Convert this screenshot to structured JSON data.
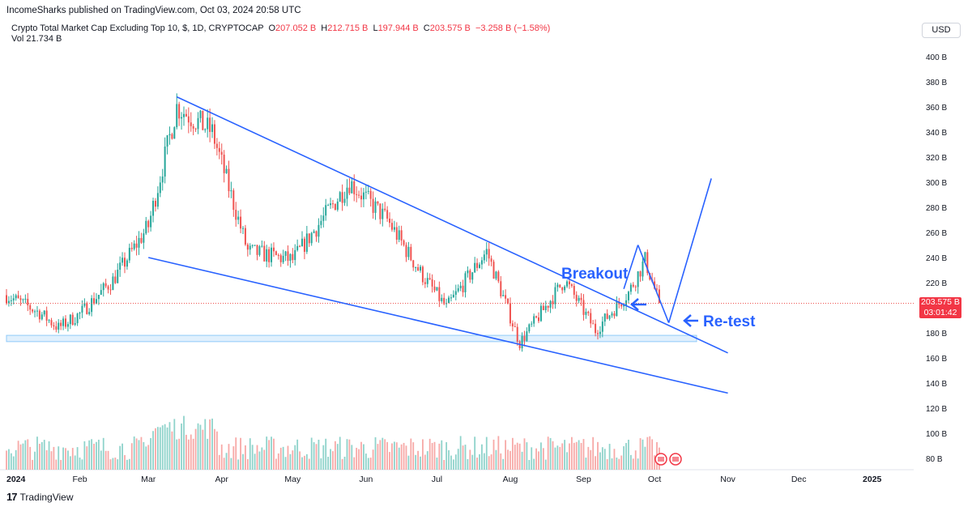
{
  "publisher": "IncomeSharks published on TradingView.com, Oct 03, 2024 20:58 UTC",
  "legend": {
    "symbol": "Crypto Total Market Cap Excluding Top 10, $, 1D, CRYPTOCAP",
    "o_label": "O",
    "o_value": "207.052 B",
    "h_label": "H",
    "h_value": "212.715 B",
    "l_label": "L",
    "l_value": "197.944 B",
    "c_label": "C",
    "c_value": "203.575 B",
    "change": "−3.258 B (−1.58%)",
    "vol_label": "Vol",
    "vol_value": "21.734 B"
  },
  "currency": "USD",
  "price_tag": {
    "price": "203.575 B",
    "countdown": "03:01:42"
  },
  "annotations": {
    "breakout": "Breakout",
    "retest": "Re-test"
  },
  "footer": {
    "brand": "TradingView",
    "logo": "17"
  },
  "colors": {
    "up": "#26a69a",
    "down": "#ef5350",
    "line": "#2962ff",
    "zone": "#bbdefb"
  },
  "chart_data": {
    "type": "candlestick",
    "y_axis_ticks": [
      "400 B",
      "380 B",
      "360 B",
      "340 B",
      "320 B",
      "300 B",
      "280 B",
      "260 B",
      "240 B",
      "220 B",
      "200 B",
      "180 B",
      "160 B",
      "140 B",
      "120 B",
      "100 B",
      "80 B"
    ],
    "x_axis_ticks": [
      "2024",
      "Feb",
      "Mar",
      "Apr",
      "May",
      "Jun",
      "Jul",
      "Aug",
      "Sep",
      "Oct",
      "Nov",
      "Dec",
      "2025"
    ],
    "ylim": [
      80,
      410
    ],
    "price_approx_B": [
      [
        "2024-01-01",
        210
      ],
      [
        "2024-01-15",
        196
      ],
      [
        "2024-01-23",
        184
      ],
      [
        "2024-02-01",
        195
      ],
      [
        "2024-02-15",
        222
      ],
      [
        "2024-03-01",
        265
      ],
      [
        "2024-03-13",
        360
      ],
      [
        "2024-03-28",
        340
      ],
      [
        "2024-04-12",
        245
      ],
      [
        "2024-05-01",
        238
      ],
      [
        "2024-05-25",
        300
      ],
      [
        "2024-06-10",
        270
      ],
      [
        "2024-06-24",
        228
      ],
      [
        "2024-07-05",
        200
      ],
      [
        "2024-07-22",
        245
      ],
      [
        "2024-08-05",
        172
      ],
      [
        "2024-08-24",
        222
      ],
      [
        "2024-09-06",
        182
      ],
      [
        "2024-09-20",
        212
      ],
      [
        "2024-09-27",
        238
      ],
      [
        "2024-10-03",
        203.575
      ]
    ],
    "trendlines": [
      {
        "from": [
          "2024-03-13",
          368
        ],
        "to": [
          "2024-11-01",
          164
        ]
      },
      {
        "from": [
          "2024-03-01",
          240
        ],
        "to": [
          "2024-11-01",
          132
        ]
      },
      {
        "from": [
          "2024-09-18",
          215
        ],
        "to": [
          "2024-09-24",
          250
        ]
      },
      {
        "from": [
          "2024-09-24",
          250
        ],
        "to": [
          "2024-10-07",
          188
        ]
      },
      {
        "from": [
          "2024-10-07",
          188
        ],
        "to": [
          "2024-10-25",
          303
        ]
      }
    ],
    "support_zone": [
      173,
      178
    ]
  }
}
